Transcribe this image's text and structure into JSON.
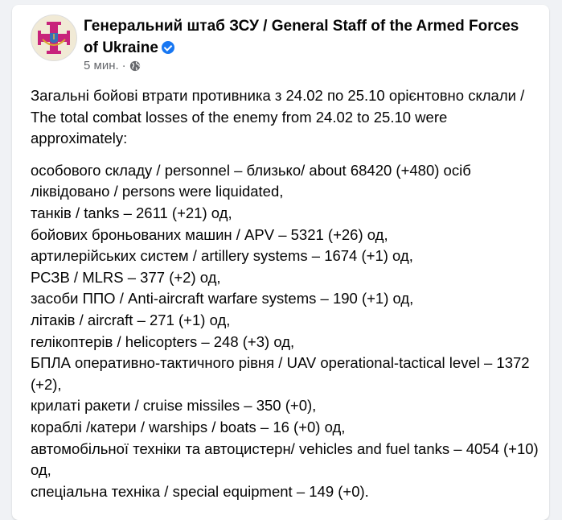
{
  "post": {
    "author": "Генеральний штаб ЗСУ / General Staff of the Armed Forces of Ukraine",
    "verified": true,
    "time": "5 мин.",
    "separator": "·",
    "audience_icon": "globe-icon",
    "intro": "Загальні бойові втрати противника з 24.02 по 25.10 орієнтовно склали / The total combat losses of the enemy from 24.02 to 25.10 were approximately:",
    "items": [
      "особового складу / personnel – близько/ about 68420 (+480) осіб ліквідовано / persons were liquidated,",
      "танків / tanks – 2611 (+21) од,",
      "бойових броньованих машин / APV – 5321 (+26) од,",
      "артилерійських систем / artillery systems – 1674 (+1) од,",
      "РСЗВ / MLRS – 377 (+2) од,",
      "засоби ППО / Anti-aircraft warfare systems – 190 (+1) од,",
      "літаків / aircraft – 271 (+1) од,",
      "гелікоптерів / helicopters – 248 (+3) од,",
      "БПЛА оперативно-тактичного рівня / UAV operational-tactical level – 1372 (+2),",
      "крилаті ракети / cruise missiles – 350 (+0),",
      "кораблі /катери / warships / boats – 16 (+0) од,",
      "автомобільної техніки та автоцистерн/ vehicles and fuel tanks – 4054 (+10) од,",
      "спеціальна техніка / special equipment – 149 (+0)."
    ]
  },
  "colors": {
    "verified": "#1877f2",
    "background": "#f0f2f5",
    "emblem_cross": "#c8237b"
  }
}
